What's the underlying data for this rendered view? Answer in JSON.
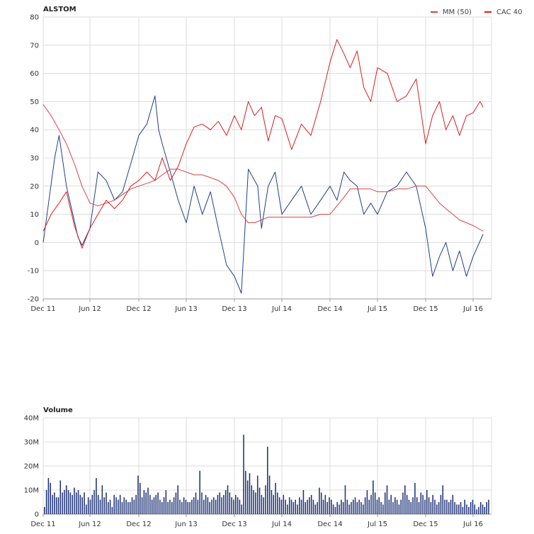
{
  "colors": {
    "stock": "#1f3f8a",
    "ma50": "#d64545",
    "cac": "#d62020",
    "volume": "#1f3377",
    "grid": "#dcdcdc",
    "axis": "#999999"
  },
  "legend": [
    {
      "label": "MM (50)",
      "color": "#d64545"
    },
    {
      "label": "CAC 40",
      "color": "#d62020"
    }
  ],
  "chart_data": [
    {
      "type": "line",
      "title": "ALSTOM",
      "x_ticks": [
        "Dec 11",
        "Jun 12",
        "Dec 12",
        "Jun 13",
        "Dec 13",
        "Jul 14",
        "Dec 14",
        "Jul 15",
        "Dec 15",
        "Jul 16"
      ],
      "ylim": [
        -20,
        80
      ],
      "y_ticks": [
        -20,
        -10,
        0,
        10,
        20,
        30,
        40,
        50,
        60,
        70,
        80
      ],
      "grid": true,
      "legend_position": "top-right",
      "series": [
        {
          "name": "ALSTOM",
          "x": [
            "2011-12-01",
            "2012-01-15",
            "2012-02-01",
            "2012-03-01",
            "2012-04-15",
            "2012-05-01",
            "2012-06-01",
            "2012-07-01",
            "2012-08-01",
            "2012-09-01",
            "2012-10-01",
            "2012-11-01",
            "2012-12-01",
            "2013-01-01",
            "2013-02-01",
            "2013-02-15",
            "2013-03-01",
            "2013-04-01",
            "2013-05-01",
            "2013-06-01",
            "2013-07-01",
            "2013-08-01",
            "2013-09-01",
            "2013-10-01",
            "2013-11-01",
            "2013-12-01",
            "2014-01-01",
            "2014-02-01",
            "2014-03-15",
            "2014-04-01",
            "2014-05-01",
            "2014-06-01",
            "2014-07-01",
            "2014-08-01",
            "2014-09-01",
            "2014-10-01",
            "2014-11-01",
            "2014-12-01",
            "2015-01-01",
            "2015-02-01",
            "2015-03-01",
            "2015-04-01",
            "2015-05-01",
            "2015-06-01",
            "2015-07-01",
            "2015-08-01",
            "2015-09-01",
            "2015-10-01",
            "2015-11-01",
            "2015-12-01",
            "2016-01-01",
            "2016-02-01",
            "2016-03-01",
            "2016-04-01",
            "2016-05-01",
            "2016-06-01",
            "2016-07-01",
            "2016-08-15"
          ],
          "y": [
            0,
            30,
            38,
            20,
            2,
            -1,
            5,
            25,
            22,
            15,
            18,
            28,
            38,
            42,
            52,
            40,
            35,
            25,
            15,
            7,
            20,
            10,
            18,
            5,
            -8,
            -12,
            -18,
            26,
            20,
            5,
            20,
            25,
            10,
            15,
            20,
            10,
            15,
            20,
            15,
            25,
            22,
            20,
            10,
            14,
            10,
            18,
            20,
            25,
            20,
            5,
            -12,
            -5,
            0,
            -10,
            -3,
            -12,
            -5,
            3
          ]
        },
        {
          "name": "MM (50)",
          "x": [
            "2011-12-01",
            "2012-01-01",
            "2012-02-01",
            "2012-03-01",
            "2012-04-01",
            "2012-05-01",
            "2012-06-01",
            "2012-07-01",
            "2012-08-01",
            "2012-09-01",
            "2012-10-01",
            "2012-11-01",
            "2012-12-01",
            "2013-01-01",
            "2013-02-01",
            "2013-03-01",
            "2013-04-01",
            "2013-05-01",
            "2013-06-01",
            "2013-07-01",
            "2013-08-01",
            "2013-09-01",
            "2013-10-01",
            "2013-11-01",
            "2013-12-01",
            "2014-01-01",
            "2014-02-01",
            "2014-03-01",
            "2014-04-01",
            "2014-05-01",
            "2014-06-01",
            "2014-07-01",
            "2014-08-01",
            "2014-09-01",
            "2014-10-01",
            "2014-11-01",
            "2014-12-01",
            "2015-01-01",
            "2015-02-01",
            "2015-03-01",
            "2015-04-01",
            "2015-05-01",
            "2015-06-01",
            "2015-07-01",
            "2015-08-01",
            "2015-09-01",
            "2015-10-01",
            "2015-11-01",
            "2015-12-01",
            "2016-01-01",
            "2016-02-01",
            "2016-03-01",
            "2016-04-01",
            "2016-05-01",
            "2016-06-01",
            "2016-07-01",
            "2016-08-15"
          ],
          "y": [
            49,
            45,
            40,
            35,
            28,
            20,
            14,
            13,
            14,
            15,
            17,
            19,
            20,
            21,
            22,
            24,
            26,
            26,
            25,
            24,
            24,
            23,
            22,
            20,
            16,
            10,
            7,
            7,
            8,
            9,
            9,
            9,
            9,
            9,
            9,
            10,
            10,
            13,
            16,
            19,
            19,
            19,
            19,
            18,
            18,
            19,
            19,
            20,
            20,
            17,
            14,
            12,
            10,
            8,
            7,
            6,
            4
          ]
        },
        {
          "name": "CAC 40",
          "x": [
            "2011-12-01",
            "2012-01-01",
            "2012-02-01",
            "2012-03-01",
            "2012-04-01",
            "2012-05-01",
            "2012-06-01",
            "2012-07-01",
            "2012-08-01",
            "2012-09-01",
            "2012-10-01",
            "2012-11-01",
            "2012-12-01",
            "2013-01-01",
            "2013-02-01",
            "2013-03-01",
            "2013-04-01",
            "2013-05-01",
            "2013-06-01",
            "2013-07-01",
            "2013-08-01",
            "2013-09-01",
            "2013-10-01",
            "2013-11-01",
            "2013-12-01",
            "2014-01-01",
            "2014-02-01",
            "2014-03-01",
            "2014-04-01",
            "2014-05-01",
            "2014-06-01",
            "2014-07-01",
            "2014-08-01",
            "2014-09-01",
            "2014-10-01",
            "2014-11-01",
            "2014-12-01",
            "2015-01-01",
            "2015-02-01",
            "2015-03-01",
            "2015-04-01",
            "2015-05-01",
            "2015-06-01",
            "2015-07-01",
            "2015-08-01",
            "2015-09-01",
            "2015-10-01",
            "2015-11-01",
            "2015-12-01",
            "2016-01-01",
            "2016-02-01",
            "2016-03-01",
            "2016-04-01",
            "2016-05-01",
            "2016-06-01",
            "2016-07-01",
            "2016-08-01",
            "2016-08-15"
          ],
          "y": [
            4,
            10,
            14,
            18,
            6,
            -2,
            5,
            10,
            15,
            12,
            15,
            20,
            22,
            25,
            22,
            30,
            22,
            27,
            35,
            41,
            42,
            40,
            43,
            38,
            45,
            40,
            50,
            45,
            48,
            36,
            45,
            44,
            33,
            42,
            38,
            50,
            64,
            72,
            67,
            62,
            68,
            55,
            50,
            62,
            60,
            50,
            52,
            58,
            35,
            45,
            50,
            40,
            45,
            38,
            45,
            46,
            50,
            48
          ]
        }
      ]
    },
    {
      "type": "bar",
      "title": "Volume",
      "x_ticks": [
        "Dec 11",
        "Jun 12",
        "Dec 12",
        "Jun 13",
        "Dec 13",
        "Jul 14",
        "Dec 14",
        "Jul 15",
        "Dec 15",
        "Jul 16"
      ],
      "ylim": [
        0,
        40
      ],
      "y_ticks": [
        "0",
        "10M",
        "20M",
        "30M",
        "40M"
      ],
      "grid": true,
      "series": [
        {
          "name": "Volume",
          "unit": "M",
          "values": [
            3,
            10,
            15,
            13,
            8,
            9,
            7,
            7,
            14,
            9,
            10,
            12,
            10,
            9,
            8,
            11,
            9,
            10,
            8,
            7,
            9,
            4,
            7,
            6,
            8,
            10,
            15,
            8,
            6,
            12,
            7,
            9,
            5,
            6,
            3,
            8,
            7,
            6,
            8,
            5,
            7,
            6,
            5,
            5,
            7,
            6,
            8,
            16,
            13,
            7,
            10,
            9,
            11,
            8,
            6,
            7,
            8,
            9,
            6,
            5,
            7,
            10,
            5,
            6,
            5,
            7,
            9,
            12,
            6,
            5,
            7,
            6,
            5,
            5,
            6,
            7,
            9,
            6,
            18,
            9,
            6,
            8,
            7,
            5,
            6,
            7,
            6,
            8,
            9,
            7,
            8,
            10,
            12,
            9,
            7,
            6,
            8,
            7,
            6,
            4,
            33,
            18,
            14,
            17,
            12,
            10,
            9,
            16,
            11,
            8,
            7,
            12,
            28,
            16,
            10,
            8,
            13,
            9,
            7,
            6,
            8,
            6,
            4,
            7,
            6,
            5,
            6,
            4,
            7,
            6,
            10,
            5,
            6,
            7,
            8,
            6,
            4,
            5,
            11,
            9,
            6,
            8,
            5,
            7,
            6,
            4,
            3,
            5,
            4,
            6,
            5,
            12,
            6,
            4,
            5,
            6,
            7,
            5,
            6,
            5,
            4,
            7,
            10,
            6,
            8,
            14,
            9,
            6,
            7,
            5,
            4,
            9,
            12,
            6,
            8,
            5,
            7,
            6,
            4,
            6,
            9,
            12,
            8,
            6,
            5,
            7,
            13,
            7,
            5,
            9,
            8,
            6,
            10,
            7,
            5,
            8,
            6,
            4,
            5,
            8,
            12,
            6,
            6,
            5,
            6,
            8,
            5,
            4,
            4,
            5,
            3,
            6,
            4,
            3,
            5,
            6,
            4,
            2,
            3,
            5,
            4,
            3,
            5,
            6
          ]
        }
      ]
    }
  ]
}
